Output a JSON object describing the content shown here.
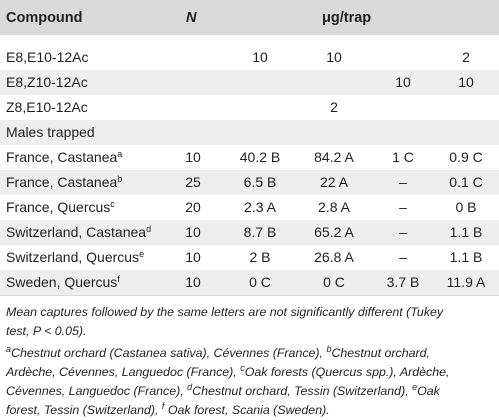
{
  "table": {
    "headers": {
      "compound": "Compound",
      "n": "N",
      "ug": "μg/trap"
    },
    "compound_rows": [
      {
        "label": "E8,E10-12Ac",
        "n": "",
        "v": [
          "10",
          "10",
          "",
          "2"
        ]
      },
      {
        "label": "E8,Z10-12Ac",
        "n": "",
        "v": [
          "",
          "",
          "10",
          "10"
        ]
      },
      {
        "label": "Z8,E10-12Ac",
        "n": "",
        "v": [
          "",
          "2",
          "",
          ""
        ]
      }
    ],
    "section_label": "Males trapped",
    "male_rows": [
      {
        "label": "France, Castanea",
        "sup": "a",
        "n": "10",
        "v": [
          "40.2 B",
          "84.2 A",
          "1 C",
          "0.9 C"
        ]
      },
      {
        "label": "France, Castanea",
        "sup": "b",
        "n": "25",
        "v": [
          "6.5 B",
          "22 A",
          "–",
          "0.1 C"
        ]
      },
      {
        "label": "France, Quercus",
        "sup": "c",
        "n": "20",
        "v": [
          "2.3 A",
          "2.8 A",
          "–",
          "0 B"
        ]
      },
      {
        "label": "Switzerland, Castanea",
        "sup": "d",
        "n": "10",
        "v": [
          "8.7 B",
          "65.2 A",
          "–",
          "1.1 B"
        ]
      },
      {
        "label": "Switzerland, Quercus",
        "sup": "e",
        "n": "10",
        "v": [
          "2 B",
          "26.8 A",
          "–",
          "1.1 B"
        ]
      },
      {
        "label": "Sweden, Quercus",
        "sup": "f",
        "n": "10",
        "v": [
          "0 C",
          "0 C",
          "3.7 B",
          "11.9 A"
        ]
      }
    ]
  },
  "notes": {
    "stat_line1": "Mean captures followed by the same letters are not significantly different (Tukey",
    "stat_line2": "test, P < 0.05).",
    "a_sup": "a",
    "a_text": "Chestnut orchard (Castanea sativa), Cévennes (France), ",
    "b_sup": "b",
    "b_text": "Chestnut orchard,",
    "line2": "Ardèche, Cévennes, Languedoc (France), ",
    "c_sup": "c",
    "c_text": "Oak forests (Quercus spp.), Ardèche,",
    "line3": "Cévennes, Languedoc (France), ",
    "d_sup": "d",
    "d_text": "Chestnut orchard, Tessin (Switzerland), ",
    "e_sup": "e",
    "e_text": "Oak",
    "line4": "forest, Tessin (Switzerland), ",
    "f_sup": "f",
    "f_text": " Oak forest, Scania (Sweden)."
  }
}
